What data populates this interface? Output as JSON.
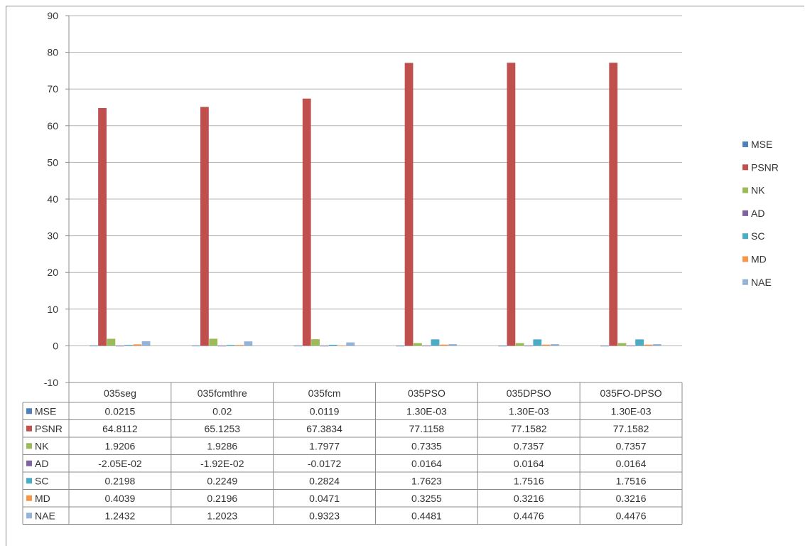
{
  "chart_data": {
    "type": "bar",
    "categories": [
      "035seg",
      "035fcmthre",
      "035fcm",
      "035PSO",
      "035DPSO",
      "035FO-DPSO"
    ],
    "series": [
      {
        "name": "MSE",
        "color": "#4f81bd",
        "values": [
          0.0215,
          0.02,
          0.0119,
          0.0013,
          0.0013,
          0.0013
        ],
        "labels": [
          "0.0215",
          "0.02",
          "0.0119",
          "1.30E-03",
          "1.30E-03",
          "1.30E-03"
        ]
      },
      {
        "name": "PSNR",
        "color": "#c0504d",
        "values": [
          64.8112,
          65.1253,
          67.3834,
          77.1158,
          77.1582,
          77.1582
        ],
        "labels": [
          "64.8112",
          "65.1253",
          "67.3834",
          "77.1158",
          "77.1582",
          "77.1582"
        ]
      },
      {
        "name": "NK",
        "color": "#9bbb59",
        "values": [
          1.9206,
          1.9286,
          1.7977,
          0.7335,
          0.7357,
          0.7357
        ],
        "labels": [
          "1.9206",
          "1.9286",
          "1.7977",
          "0.7335",
          "0.7357",
          "0.7357"
        ]
      },
      {
        "name": "AD",
        "color": "#8064a2",
        "values": [
          -0.0205,
          -0.0192,
          -0.0172,
          0.0164,
          0.0164,
          0.0164
        ],
        "labels": [
          "-2.05E-02",
          "-1.92E-02",
          "-0.0172",
          "0.0164",
          "0.0164",
          "0.0164"
        ]
      },
      {
        "name": "SC",
        "color": "#4bacc6",
        "values": [
          0.2198,
          0.2249,
          0.2824,
          1.7623,
          1.7516,
          1.7516
        ],
        "labels": [
          "0.2198",
          "0.2249",
          "0.2824",
          "1.7623",
          "1.7516",
          "1.7516"
        ]
      },
      {
        "name": "MD",
        "color": "#f79646",
        "values": [
          0.4039,
          0.2196,
          0.0471,
          0.3255,
          0.3216,
          0.3216
        ],
        "labels": [
          "0.4039",
          "0.2196",
          "0.0471",
          "0.3255",
          "0.3216",
          "0.3216"
        ]
      },
      {
        "name": "NAE",
        "color": "#95b3d7",
        "values": [
          1.2432,
          1.2023,
          0.9323,
          0.4481,
          0.4476,
          0.4476
        ],
        "labels": [
          "1.2432",
          "1.2023",
          "0.9323",
          "0.4481",
          "0.4476",
          "0.4476"
        ]
      }
    ],
    "ylim": [
      -10,
      90
    ],
    "yticks": [
      "-10",
      "0",
      "10",
      "20",
      "30",
      "40",
      "50",
      "60",
      "70",
      "80",
      "90"
    ],
    "grid": true,
    "legend_position": "right",
    "data_table": true,
    "title": "",
    "xlabel": "",
    "ylabel": ""
  }
}
